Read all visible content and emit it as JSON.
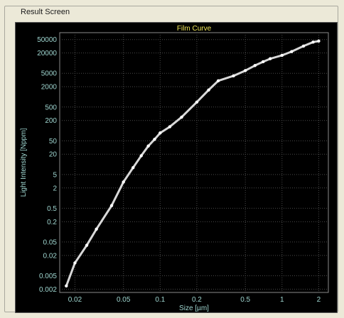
{
  "window": {
    "group_label": "Result Screen"
  },
  "chart_data": {
    "type": "line",
    "title": "Film Curve",
    "xlabel": "Size [µm]",
    "ylabel": "Light Intensity [Nppm]",
    "xscale": "log",
    "yscale": "log",
    "xlim": [
      0.015,
      2.4
    ],
    "ylim": [
      0.0016,
      80000
    ],
    "grid": true,
    "x_ticks": [
      0.02,
      0.05,
      0.1,
      0.2,
      0.5,
      1,
      2
    ],
    "x_tick_labels": [
      "0.02",
      "0.05",
      "0.1",
      "0.2",
      "0.5",
      "1",
      "2"
    ],
    "y_ticks": [
      0.002,
      0.005,
      0.02,
      0.05,
      0.2,
      0.5,
      2,
      5,
      20,
      50,
      200,
      500,
      2000,
      5000,
      20000,
      50000
    ],
    "y_tick_labels": [
      "0.002",
      "0.005",
      "0.02",
      "0.05",
      "0.2",
      "0.5",
      "2",
      "5",
      "20",
      "50",
      "200",
      "500",
      "2000",
      "5000",
      "20000",
      "50000"
    ],
    "series": [
      {
        "color": "#d8d8d8",
        "x": [
          0.017,
          0.02,
          0.025,
          0.03,
          0.04,
          0.05,
          0.06,
          0.07,
          0.08,
          0.09,
          0.1,
          0.12,
          0.15,
          0.2,
          0.25,
          0.3,
          0.4,
          0.5,
          0.6,
          0.7,
          0.8,
          1.0,
          1.2,
          1.5,
          1.8,
          2.0
        ],
        "y": [
          0.0025,
          0.012,
          0.04,
          0.12,
          0.6,
          3.0,
          8.0,
          18,
          35,
          55,
          85,
          130,
          250,
          700,
          1600,
          3000,
          4200,
          6000,
          8500,
          11000,
          13500,
          17000,
          22000,
          32000,
          42000,
          45000
        ]
      }
    ]
  }
}
